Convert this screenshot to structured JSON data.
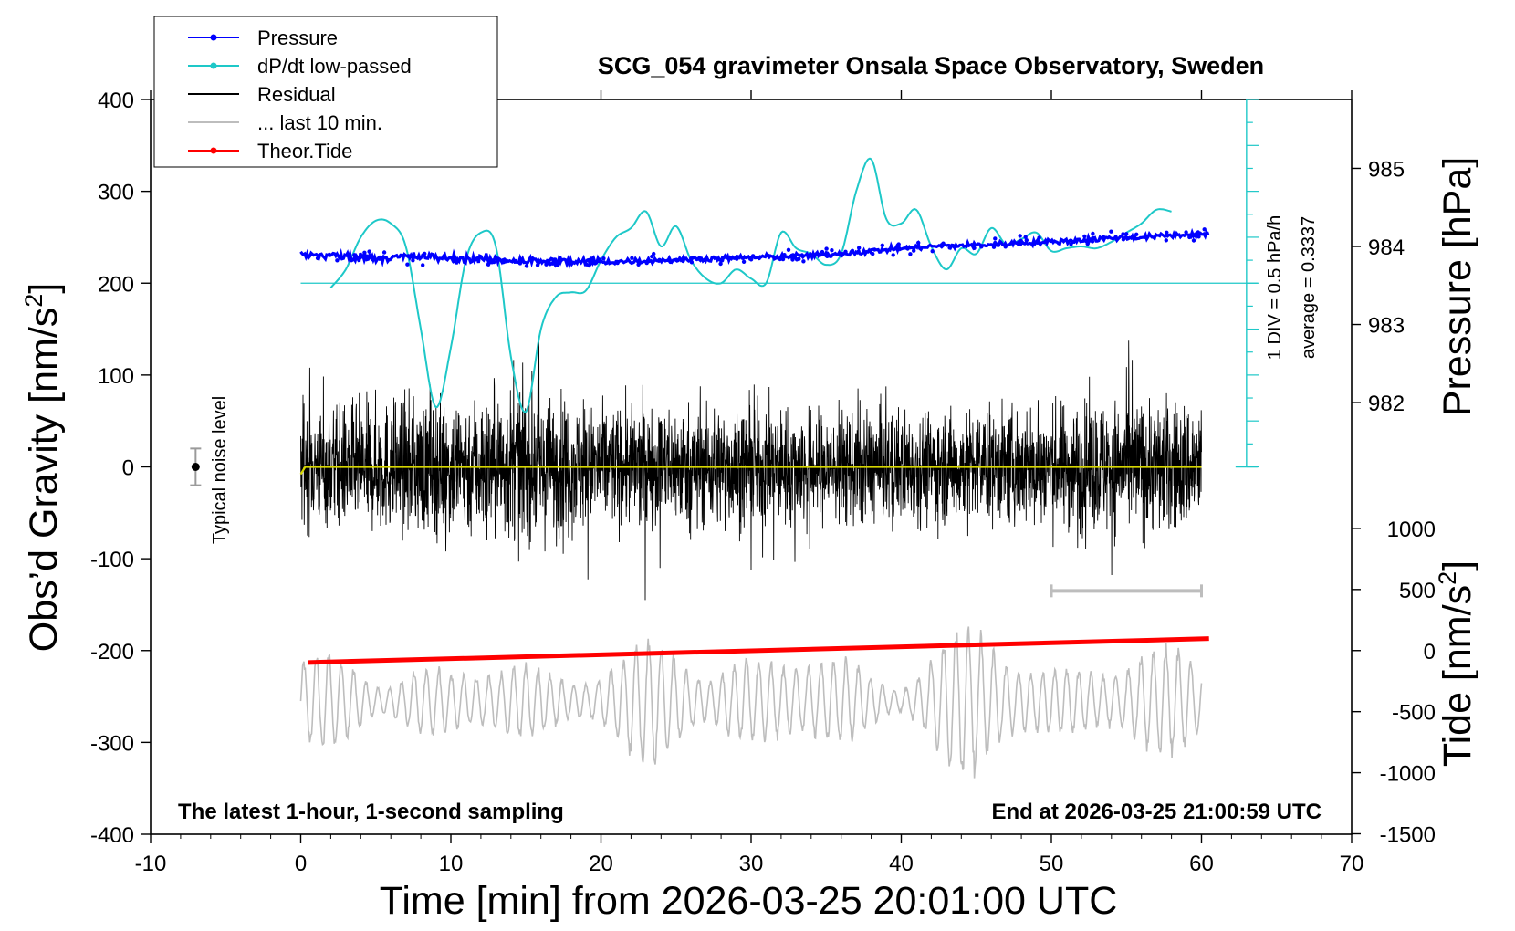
{
  "chart_data": {
    "type": "line",
    "title": "SCG_054 gravimeter Onsala Space Observatory, Sweden",
    "xlabel": "Time [min] from 2026-03-25 20:01:00 UTC",
    "ylabel_left_main": "Obs’d Gravity [nm/s",
    "ylabel_left_sup": "2",
    "ylabel_left_end": "]",
    "ylabel_right_top": "Pressure [hPa]",
    "ylabel_right_bottom_main": "Tide [nm/s",
    "ylabel_right_bottom_sup": "2",
    "ylabel_right_bottom_end": "]",
    "xlim": [
      -10,
      70
    ],
    "ylim": [
      -400,
      400
    ],
    "x_ticks": [
      -10,
      0,
      10,
      20,
      30,
      40,
      50,
      60,
      70
    ],
    "x_tick_labels": [
      "-10",
      "0",
      "10",
      "20",
      "30",
      "40",
      "50",
      "60",
      "70"
    ],
    "y_ticks": [
      400,
      300,
      200,
      100,
      0,
      -100,
      -200,
      -300,
      -400
    ],
    "y_tick_labels": [
      "400",
      "300",
      "200",
      "100",
      "0",
      "-100",
      "-200",
      "-300",
      "-400"
    ],
    "pressure_axis": {
      "ticks": [
        985,
        984,
        983,
        982
      ],
      "tick_labels": [
        "985",
        "984",
        "983",
        "982"
      ],
      "anchor": {
        "value": 984,
        "gravity": 240
      },
      "gravity_per_hPa": 85
    },
    "tide_axis": {
      "ticks": [
        1000,
        500,
        0,
        -500,
        -1000,
        -1500
      ],
      "tick_labels": [
        "1000",
        "500",
        "0",
        "-500",
        "-1000",
        "-1500"
      ],
      "anchor": {
        "value": 0,
        "gravity": -200
      },
      "gravity_per_unit": 0.133
    },
    "legend": {
      "placement": "top-left",
      "entries": [
        {
          "label": "Pressure",
          "color": "#0000ff",
          "marker": true
        },
        {
          "label": "dP/dt low-passed",
          "color": "#1ec8c8",
          "marker": true
        },
        {
          "label": "Residual",
          "color": "#000000",
          "marker": false
        },
        {
          "label": "... last 10 min.",
          "color": "#bdbdbd",
          "marker": false
        },
        {
          "label": "Theor.Tide",
          "color": "#ff0000",
          "marker": true
        }
      ]
    },
    "dpdt_scale": {
      "label": "1 DIV = 0.5 hPa/h",
      "average_label": "average = 0.3337",
      "x": 63,
      "zero_gravity": 200,
      "baseline_gravity": 0,
      "divisions": 8
    },
    "noise_bar": {
      "label": "Typical noise level",
      "x": -7,
      "center": 0,
      "half_range": 20
    },
    "last10_bar": {
      "x_start": 50,
      "x_end": 60,
      "gravity": -135
    },
    "series": [
      {
        "name": "Pressure",
        "color": "#0000ff",
        "x": [
          0,
          2,
          4,
          6,
          8,
          10,
          12,
          14,
          16,
          18,
          20,
          22,
          24,
          26,
          28,
          30,
          32,
          34,
          36,
          38,
          40,
          42,
          44,
          46,
          48,
          50,
          52,
          54,
          56,
          58,
          60.5
        ],
        "values": [
          231,
          230,
          228,
          228,
          229,
          227,
          226,
          225,
          224,
          223,
          223,
          224,
          225,
          226,
          227,
          228,
          229,
          230,
          232,
          235,
          238,
          240,
          241,
          242,
          244,
          245,
          247,
          249,
          250,
          252,
          254
        ]
      },
      {
        "name": "dP/dt low-passed",
        "color": "#1ec8c8",
        "x": [
          2,
          3,
          4,
          5,
          6,
          7,
          8,
          9,
          10,
          11,
          12,
          13,
          14,
          15,
          16,
          17,
          18,
          19,
          20,
          21,
          22,
          23,
          24,
          25,
          26,
          27,
          28,
          29,
          30,
          31,
          32,
          33,
          34,
          35,
          36,
          37,
          38,
          39,
          40,
          41,
          42,
          43,
          44,
          45,
          46,
          47,
          48,
          49,
          50,
          51,
          52,
          53,
          54,
          55,
          56,
          57,
          58
        ],
        "values": [
          195,
          215,
          250,
          268,
          265,
          240,
          150,
          65,
          130,
          225,
          255,
          240,
          120,
          60,
          150,
          185,
          190,
          192,
          225,
          250,
          260,
          278,
          240,
          262,
          225,
          205,
          200,
          215,
          205,
          200,
          255,
          238,
          232,
          220,
          232,
          300,
          335,
          270,
          265,
          280,
          240,
          215,
          238,
          232,
          260,
          242,
          248,
          255,
          235,
          238,
          240,
          238,
          245,
          255,
          265,
          280,
          278
        ]
      },
      {
        "name": "Residual",
        "color": "#000000",
        "x": [
          0,
          60
        ],
        "values": [
          0,
          0
        ],
        "amplitude_envelope": {
          "x": [
            0,
            5,
            10,
            14,
            20,
            27,
            35,
            45,
            50,
            55,
            60
          ],
          "values": [
            70,
            80,
            85,
            95,
            75,
            75,
            70,
            70,
            75,
            85,
            80
          ]
        }
      },
      {
        "name": "Residual mean",
        "color": "#d6d600",
        "x": [
          0,
          0.3,
          60
        ],
        "values": [
          -8,
          0,
          0
        ]
      },
      {
        "name": "... last 10 min.",
        "color": "#bdbdbd",
        "x_start": 0,
        "x_end": 60,
        "center": -255,
        "amplitude_envelope": {
          "x": [
            0,
            5,
            10,
            15,
            20,
            25,
            30,
            35,
            40,
            45,
            50,
            55,
            60
          ],
          "values": [
            45,
            60,
            30,
            55,
            40,
            75,
            55,
            50,
            45,
            80,
            55,
            45,
            70
          ]
        }
      },
      {
        "name": "Theor.Tide",
        "color": "#ff0000",
        "x": [
          0.5,
          60.5
        ],
        "values": [
          -213,
          -187
        ]
      }
    ],
    "annotations": {
      "bottom_left": "The latest 1-hour, 1-second sampling",
      "bottom_right": "End at 2026-03-25 21:00:59 UTC"
    }
  }
}
